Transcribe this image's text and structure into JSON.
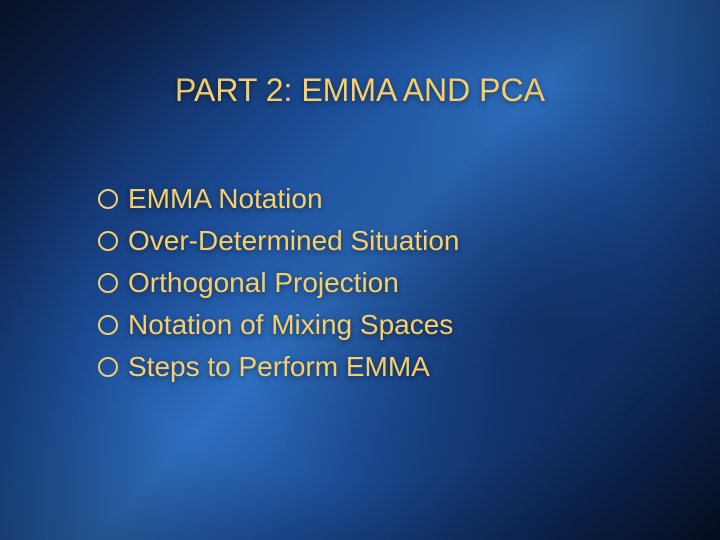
{
  "slide": {
    "title": "PART 2: EMMA AND PCA",
    "title_color": "#f7cf6a",
    "title_fontsize": 32,
    "title_fontweight": 400,
    "bullets": [
      "EMMA Notation",
      "Over-Determined Situation",
      "Orthogonal Projection",
      "Notation of Mixing Spaces",
      "Steps to Perform EMMA"
    ],
    "bullet_color": "#f7cf6a",
    "bullet_fontsize": 28,
    "bullet_fontweight": 400,
    "bullet_line_height": 42,
    "bullet_marker": "hollow-circle",
    "background": {
      "type": "gradient",
      "colors": [
        "#0b1a3a",
        "#0f2a5c",
        "#1c4d97",
        "#2e6fc0",
        "#1d4e98",
        "#0d2a5c",
        "#07142f"
      ]
    }
  }
}
